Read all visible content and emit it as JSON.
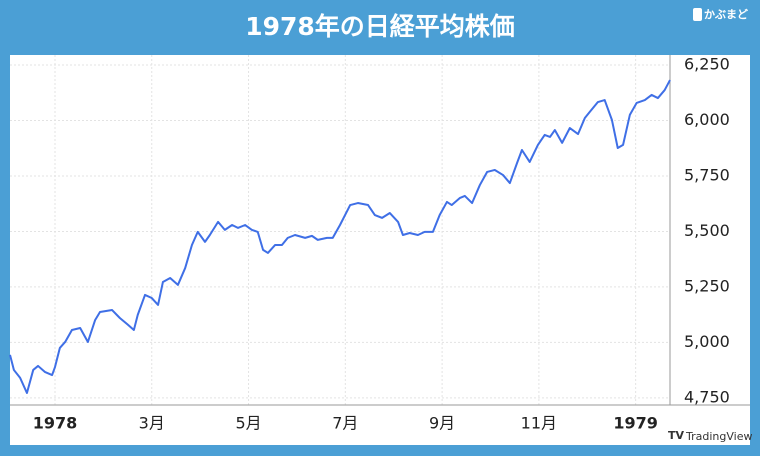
{
  "chart_data": {
    "type": "line",
    "title": "1978年の日経平均株価",
    "brand": "かぶまど",
    "watermark": "TradingView",
    "x": [
      -0.93,
      -0.85,
      -0.72,
      -0.58,
      -0.45,
      -0.35,
      -0.21,
      -0.06,
      0,
      0.1,
      0.21,
      0.35,
      0.52,
      0.68,
      0.83,
      0.93,
      1.18,
      1.34,
      1.51,
      1.63,
      1.71,
      1.86,
      2,
      2.13,
      2.23,
      2.38,
      2.54,
      2.69,
      2.83,
      2.95,
      3.1,
      3.2,
      3.37,
      3.51,
      3.66,
      3.78,
      3.93,
      4.07,
      4.19,
      4.3,
      4.4,
      4.55,
      4.69,
      4.81,
      4.96,
      5.17,
      5.31,
      5.43,
      5.62,
      5.74,
      5.89,
      6.1,
      6.26,
      6.47,
      6.61,
      6.76,
      6.92,
      7.09,
      7.19,
      7.33,
      7.5,
      7.64,
      7.81,
      7.95,
      8.1,
      8.2,
      8.37,
      8.47,
      8.62,
      8.78,
      8.93,
      9.09,
      9.26,
      9.4,
      9.55,
      9.65,
      9.81,
      9.98,
      10.12,
      10.23,
      10.33,
      10.48,
      10.64,
      10.81,
      10.95,
      11.05,
      11.22,
      11.36,
      11.51,
      11.63,
      11.74,
      11.88,
      12.02,
      12.19,
      12.33,
      12.46,
      12.6,
      12.71
    ],
    "series": [
      {
        "name": "日経平均株価",
        "color": "#3f6fe6",
        "values": [
          4944,
          4876,
          4840,
          4772,
          4876,
          4894,
          4867,
          4853,
          4889,
          4975,
          5002,
          5056,
          5065,
          5002,
          5101,
          5137,
          5146,
          5110,
          5079,
          5056,
          5124,
          5214,
          5200,
          5169,
          5272,
          5290,
          5259,
          5335,
          5439,
          5498,
          5453,
          5484,
          5543,
          5507,
          5529,
          5516,
          5529,
          5507,
          5498,
          5417,
          5403,
          5439,
          5439,
          5471,
          5484,
          5471,
          5480,
          5462,
          5471,
          5471,
          5529,
          5619,
          5628,
          5619,
          5574,
          5561,
          5583,
          5543,
          5484,
          5493,
          5484,
          5498,
          5498,
          5574,
          5633,
          5619,
          5651,
          5660,
          5628,
          5709,
          5768,
          5777,
          5754,
          5718,
          5809,
          5867,
          5813,
          5890,
          5935,
          5926,
          5957,
          5899,
          5966,
          5939,
          6011,
          6038,
          6083,
          6092,
          6002,
          5876,
          5890,
          6025,
          6079,
          6092,
          6115,
          6101,
          6137,
          6182
        ]
      }
    ],
    "xlim": [
      -0.93,
      12.71
    ],
    "xticks": [
      {
        "value": 0,
        "label": "1978"
      },
      {
        "value": 2,
        "label": "3月"
      },
      {
        "value": 4,
        "label": "5月"
      },
      {
        "value": 6,
        "label": "7月"
      },
      {
        "value": 8,
        "label": "9月"
      },
      {
        "value": 10,
        "label": "11月"
      },
      {
        "value": 12,
        "label": "1979"
      }
    ],
    "ylim": [
      4718,
      6295
    ],
    "yticks": [
      {
        "value": 4750,
        "label": "4,750"
      },
      {
        "value": 5000,
        "label": "5,000"
      },
      {
        "value": 5250,
        "label": "5,250"
      },
      {
        "value": 5500,
        "label": "5,500"
      },
      {
        "value": 5750,
        "label": "5,750"
      },
      {
        "value": 6000,
        "label": "6,000"
      },
      {
        "value": 6250,
        "label": "6,250"
      }
    ],
    "grid": true
  }
}
